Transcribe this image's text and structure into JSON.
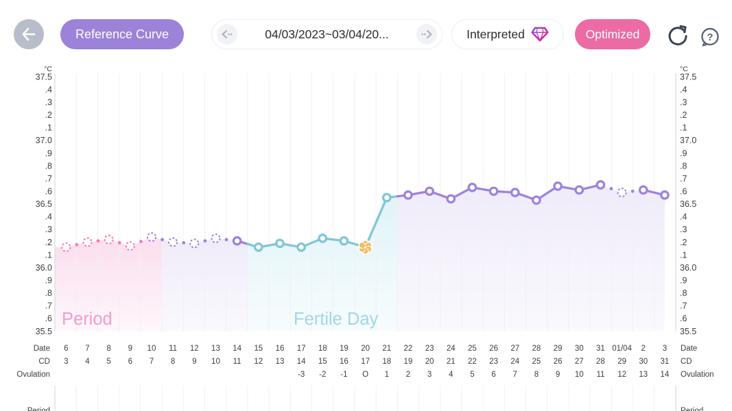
{
  "header": {
    "reference_curve_label": "Reference Curve",
    "date_range": "04/03/2023~03/04/20...",
    "interpreted_label": "Interpreted",
    "optimized_label": "Optimized",
    "icons": {
      "back": "arrow-left",
      "prev": "chevron-left-dotted",
      "next": "chevron-right-dotted",
      "gem": "diamond-gem",
      "refresh": "circular-arrow",
      "help": "question-mark-bubble"
    }
  },
  "colors": {
    "period_pink": "#f279bd",
    "post_ovulation_purple": "#9d82dd",
    "fertile_teal": "#7fc6d6",
    "ovulation_orange": "#f2bc64",
    "period_label_pink": "#f08cc8",
    "fertile_label_teal": "#90d0e0",
    "reference_curve_purple": "#9c82d9",
    "optimized_pink": "#ec6ba4",
    "back_gray": "#b7bdc9",
    "axis_text": "#3b3b42",
    "grid_line": "#f0eff4",
    "axis_line": "#d9dae0",
    "fill_pink": "#f6aed6",
    "fill_purple": "#cfc3ef",
    "fill_teal": "#bfe7f0"
  },
  "chart_data": {
    "type": "line",
    "y_axis": {
      "unit": "°C",
      "ylim": [
        35.5,
        37.5
      ],
      "tick_step": 0.1,
      "labels": [
        "37.5",
        ".4",
        ".3",
        ".2",
        ".1",
        "37.0",
        ".9",
        ".8",
        ".7",
        ".6",
        "36.5",
        ".4",
        ".3",
        ".2",
        ".1",
        "36.0",
        ".9",
        ".8",
        ".7",
        ".6",
        "35.5"
      ]
    },
    "row_labels": {
      "date": "Date",
      "cd": "CD",
      "ovulation": "Ovulation",
      "period": "Period"
    },
    "annotations": [
      {
        "text": "Period",
        "color_key": "period_label_pink"
      },
      {
        "text": "Fertile Day",
        "color_key": "fertile_label_teal"
      }
    ],
    "points": [
      {
        "date": "6",
        "cd": "3",
        "ovulation": "",
        "temp": 36.16,
        "style": "dashed",
        "color": "pink"
      },
      {
        "date": "7",
        "cd": "4",
        "ovulation": "",
        "temp": 36.2,
        "style": "dashed",
        "color": "pink"
      },
      {
        "date": "8",
        "cd": "5",
        "ovulation": "",
        "temp": 36.22,
        "style": "dashed",
        "color": "pink"
      },
      {
        "date": "9",
        "cd": "6",
        "ovulation": "",
        "temp": 36.17,
        "style": "dashed",
        "color": "pink"
      },
      {
        "date": "10",
        "cd": "7",
        "ovulation": "",
        "temp": 36.24,
        "style": "dashed",
        "color": "purple"
      },
      {
        "date": "11",
        "cd": "8",
        "ovulation": "",
        "temp": 36.2,
        "style": "dashed",
        "color": "purple"
      },
      {
        "date": "12",
        "cd": "9",
        "ovulation": "",
        "temp": 36.19,
        "style": "dashed",
        "color": "purple"
      },
      {
        "date": "13",
        "cd": "10",
        "ovulation": "",
        "temp": 36.23,
        "style": "dashed",
        "color": "purple"
      },
      {
        "date": "14",
        "cd": "11",
        "ovulation": "",
        "temp": 36.21,
        "style": "solid",
        "color": "purple"
      },
      {
        "date": "15",
        "cd": "12",
        "ovulation": "",
        "temp": 36.16,
        "style": "solid",
        "color": "teal"
      },
      {
        "date": "16",
        "cd": "13",
        "ovulation": "",
        "temp": 36.19,
        "style": "solid",
        "color": "teal"
      },
      {
        "date": "17",
        "cd": "14",
        "ovulation": "-3",
        "temp": 36.16,
        "style": "solid",
        "color": "teal"
      },
      {
        "date": "18",
        "cd": "15",
        "ovulation": "-2",
        "temp": 36.23,
        "style": "solid",
        "color": "teal"
      },
      {
        "date": "19",
        "cd": "16",
        "ovulation": "-1",
        "temp": 36.21,
        "style": "solid",
        "color": "teal"
      },
      {
        "date": "20",
        "cd": "17",
        "ovulation": "O",
        "temp": 36.16,
        "style": "flower",
        "color": "orange"
      },
      {
        "date": "21",
        "cd": "18",
        "ovulation": "1",
        "temp": 36.55,
        "style": "solid",
        "color": "teal"
      },
      {
        "date": "22",
        "cd": "19",
        "ovulation": "2",
        "temp": 36.57,
        "style": "solid",
        "color": "purple"
      },
      {
        "date": "23",
        "cd": "20",
        "ovulation": "3",
        "temp": 36.6,
        "style": "solid",
        "color": "purple"
      },
      {
        "date": "24",
        "cd": "21",
        "ovulation": "4",
        "temp": 36.54,
        "style": "solid",
        "color": "purple"
      },
      {
        "date": "25",
        "cd": "22",
        "ovulation": "5",
        "temp": 36.63,
        "style": "solid",
        "color": "purple"
      },
      {
        "date": "26",
        "cd": "23",
        "ovulation": "6",
        "temp": 36.6,
        "style": "solid",
        "color": "purple"
      },
      {
        "date": "27",
        "cd": "24",
        "ovulation": "7",
        "temp": 36.59,
        "style": "solid",
        "color": "purple"
      },
      {
        "date": "28",
        "cd": "25",
        "ovulation": "8",
        "temp": 36.53,
        "style": "solid",
        "color": "purple"
      },
      {
        "date": "29",
        "cd": "26",
        "ovulation": "9",
        "temp": 36.64,
        "style": "solid",
        "color": "purple"
      },
      {
        "date": "30",
        "cd": "27",
        "ovulation": "10",
        "temp": 36.61,
        "style": "solid",
        "color": "purple"
      },
      {
        "date": "31",
        "cd": "28",
        "ovulation": "11",
        "temp": 36.65,
        "style": "solid",
        "color": "purple"
      },
      {
        "date": "01/04",
        "cd": "29",
        "ovulation": "12",
        "temp": 36.59,
        "style": "dashed",
        "color": "purple"
      },
      {
        "date": "2",
        "cd": "30",
        "ovulation": "13",
        "temp": 36.61,
        "style": "solid",
        "color": "purple"
      },
      {
        "date": "3",
        "cd": "31",
        "ovulation": "14",
        "temp": 36.57,
        "style": "solid",
        "color": "purple"
      }
    ],
    "fill_segments": [
      {
        "from_index": 0,
        "to_index": 4,
        "color": "pink"
      },
      {
        "from_index": 5,
        "to_index": 8,
        "color": "purple"
      },
      {
        "from_index": 9,
        "to_index": 15,
        "color": "teal"
      },
      {
        "from_index": 16,
        "to_index": 28,
        "color": "purple"
      }
    ]
  }
}
